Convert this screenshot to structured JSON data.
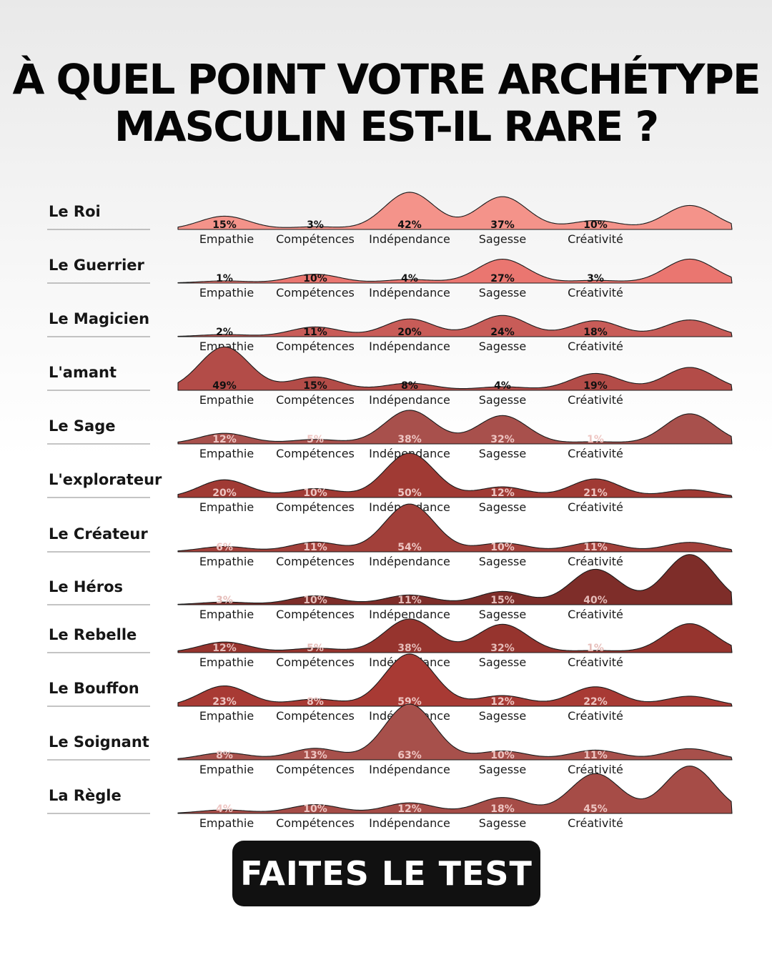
{
  "title": {
    "line1": "À QUEL POINT VOTRE ARCHÉTYPE",
    "line2": "MASCULIN EST-IL RARE ?"
  },
  "cta": {
    "label": "FAITES LE TEST"
  },
  "chart_data": {
    "type": "area",
    "title": "À QUEL POINT VOTRE ARCHÉTYPE MASCULIN EST-IL RARE ?",
    "categories": [
      "Empathie",
      "Compétences",
      "Indépendance",
      "Sagesse",
      "Créativité"
    ],
    "series": [
      {
        "name": "Le Roi",
        "values": [
          15,
          3,
          42,
          37,
          10
        ],
        "color": "#f4938a",
        "label_color": "#111111",
        "extra_peak": 0.43
      },
      {
        "name": "Le Guerrier",
        "values": [
          1,
          10,
          4,
          27,
          3
        ],
        "color": "#ea7670",
        "label_color": "#111111",
        "extra_peak": 0.43
      },
      {
        "name": "Le Magicien",
        "values": [
          2,
          11,
          20,
          24,
          18
        ],
        "color": "#c85c58",
        "label_color": "#111111",
        "extra_peak": 0.3
      },
      {
        "name": "L'amant",
        "values": [
          49,
          15,
          8,
          4,
          19
        ],
        "color": "#b34c48",
        "label_color": "#111111",
        "extra_peak": 0.41
      },
      {
        "name": "Le Sage",
        "values": [
          12,
          5,
          38,
          32,
          1
        ],
        "color": "#a8504c",
        "label_color": "#eec5c2",
        "extra_peak": 0.54
      },
      {
        "name": "L'explorateur",
        "values": [
          20,
          10,
          50,
          12,
          21
        ],
        "color": "#a03a34",
        "label_color": "#eec5c2",
        "extra_peak": 0.14
      },
      {
        "name": "Le Créateur",
        "values": [
          6,
          11,
          54,
          10,
          11
        ],
        "color": "#a2403a",
        "label_color": "#eec5c2",
        "extra_peak": 0.17
      },
      {
        "name": "Le Héros",
        "values": [
          3,
          10,
          11,
          15,
          40
        ],
        "color": "#7e2d29",
        "label_color": "#e6bdb9",
        "extra_peak": 0.9
      },
      {
        "name": "Le Rebelle",
        "values": [
          12,
          5,
          38,
          32,
          1
        ],
        "color": "#96342e",
        "label_color": "#e6bdb9",
        "extra_peak": 0.52
      },
      {
        "name": "Le Bouffon",
        "values": [
          23,
          8,
          59,
          12,
          22
        ],
        "color": "#a83a34",
        "label_color": "#eec5c2",
        "extra_peak": 0.18
      },
      {
        "name": "Le Soignant",
        "values": [
          8,
          13,
          63,
          10,
          11
        ],
        "color": "#a7504b",
        "label_color": "#eec5c2",
        "extra_peak": 0.2
      },
      {
        "name": "La Règle",
        "values": [
          4,
          10,
          12,
          18,
          45
        ],
        "color": "#a64c47",
        "label_color": "#eec5c2",
        "extra_peak": 0.85
      }
    ],
    "grid": false,
    "legend": "none"
  }
}
